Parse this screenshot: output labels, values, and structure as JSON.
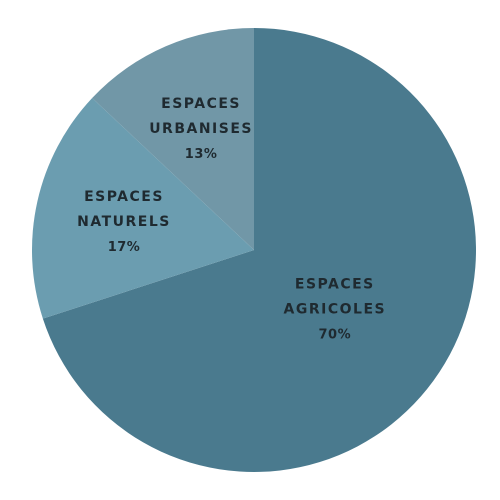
{
  "chart_data": {
    "type": "pie",
    "start_angle_deg": 0,
    "direction": "clockwise",
    "slices": [
      {
        "label_lines": [
          "ESPACES",
          "AGRICOLES"
        ],
        "value": 70,
        "value_label": "70%",
        "color": "#4a7a8e"
      },
      {
        "label_lines": [
          "ESPACES",
          "NATURELS"
        ],
        "value": 17,
        "value_label": "17%",
        "color": "#6b9db0"
      },
      {
        "label_lines": [
          "ESPACES",
          "URBANISES"
        ],
        "value": 13,
        "value_label": "13%",
        "color": "#7197a7"
      }
    ]
  }
}
